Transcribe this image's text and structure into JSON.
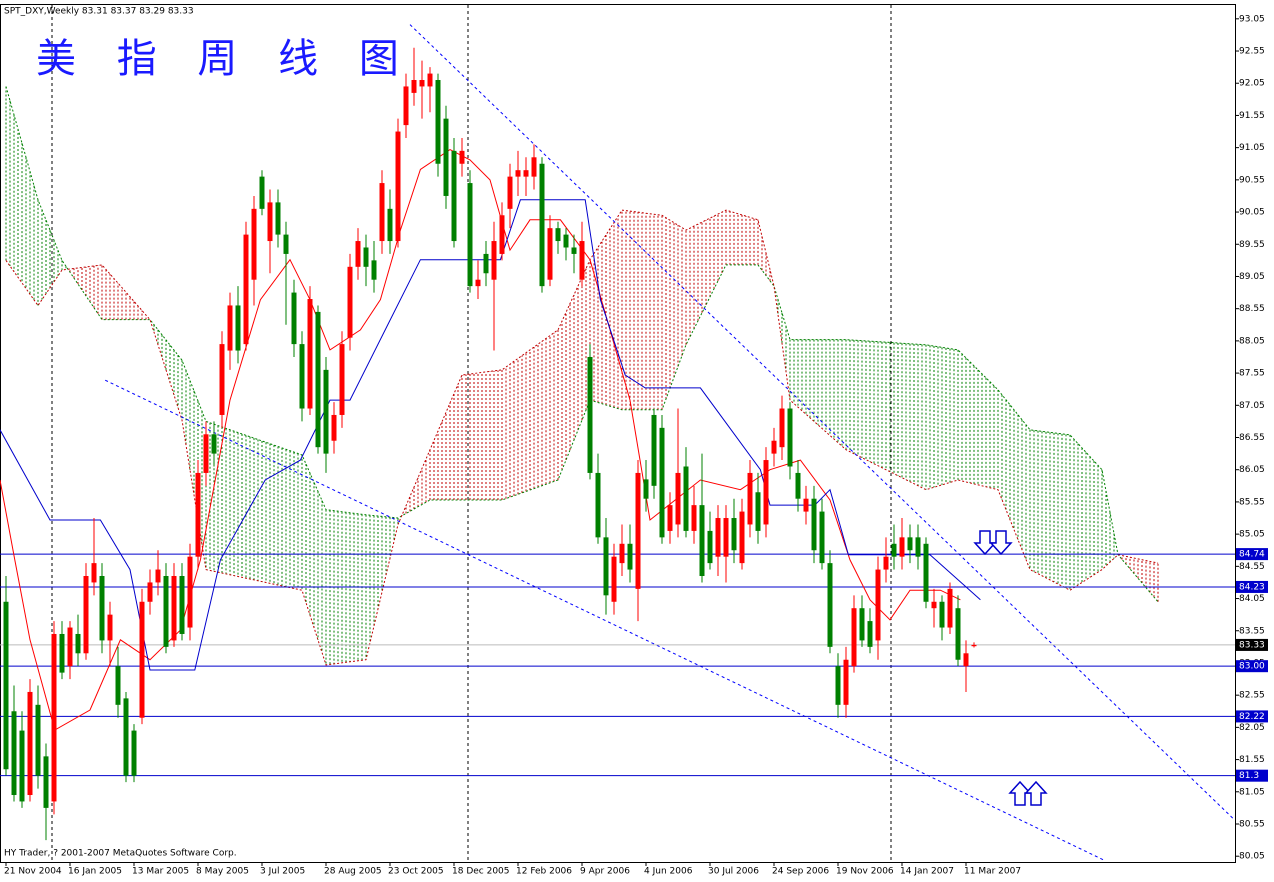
{
  "chart_data": {
    "type": "candlestick",
    "header": "SPT_DXY,Weekly  83.31 83.37 83.29 83.33",
    "title": "美 指 周 线 图",
    "footer": "HY Trader, ? 2001-2007 MetaQuotes Software Corp.",
    "up_color": "#ff0000",
    "down_color": "#008000",
    "xlim": [
      -0.75,
      153.625
    ],
    "ylim": [
      79.96,
      93.28
    ],
    "yticks": [
      80.05,
      80.55,
      81.05,
      81.55,
      82.05,
      82.55,
      83.05,
      83.55,
      84.05,
      84.55,
      85.05,
      85.55,
      86.05,
      86.55,
      87.05,
      87.55,
      88.05,
      88.55,
      89.05,
      89.55,
      90.05,
      90.55,
      91.05,
      91.55,
      92.05,
      92.55,
      93.05
    ],
    "xticks": [
      {
        "value": 0,
        "label": "21 Nov 2004"
      },
      {
        "value": 8,
        "label": "16 Jan 2005"
      },
      {
        "value": 16,
        "label": "13 Mar 2005"
      },
      {
        "value": 24,
        "label": "8 May 2005"
      },
      {
        "value": 32,
        "label": "3 Jul 2005"
      },
      {
        "value": 40,
        "label": "28 Aug 2005"
      },
      {
        "value": 48,
        "label": "23 Oct 2005"
      },
      {
        "value": 56,
        "label": "18 Dec 2005"
      },
      {
        "value": 64,
        "label": "12 Feb 2006"
      },
      {
        "value": 72,
        "label": "9 Apr 2006"
      },
      {
        "value": 80,
        "label": "4 Jun 2006"
      },
      {
        "value": 88,
        "label": "30 Jul 2006"
      },
      {
        "value": 96,
        "label": "24 Sep 2006"
      },
      {
        "value": 104,
        "label": "19 Nov 2006"
      },
      {
        "value": 112,
        "label": "14 Jan 2007"
      },
      {
        "value": 120,
        "label": "11 Mar 2007"
      }
    ],
    "candles": [
      [
        84.0,
        84.4,
        81.3,
        81.4
      ],
      [
        82.3,
        82.7,
        80.9,
        81.0
      ],
      [
        82.0,
        82.3,
        80.8,
        80.9
      ],
      [
        81.0,
        82.8,
        80.9,
        82.6
      ],
      [
        82.4,
        82.7,
        81.1,
        81.3
      ],
      [
        81.6,
        81.8,
        80.3,
        80.8
      ],
      [
        80.9,
        83.7,
        80.7,
        83.5
      ],
      [
        83.5,
        83.7,
        82.8,
        82.9
      ],
      [
        83.0,
        83.7,
        82.8,
        83.6
      ],
      [
        83.5,
        83.8,
        83.0,
        83.2
      ],
      [
        83.2,
        84.6,
        83.1,
        84.4
      ],
      [
        84.3,
        85.3,
        84.1,
        84.6
      ],
      [
        84.4,
        84.6,
        83.2,
        83.4
      ],
      [
        83.4,
        84.0,
        83.0,
        83.8
      ],
      [
        83.0,
        83.3,
        82.2,
        82.4
      ],
      [
        82.5,
        82.6,
        81.2,
        81.3
      ],
      [
        82.0,
        82.1,
        81.2,
        81.3
      ],
      [
        82.2,
        84.2,
        82.1,
        84.0
      ],
      [
        84.0,
        84.5,
        83.8,
        84.3
      ],
      [
        84.3,
        84.8,
        84.1,
        84.5
      ],
      [
        84.4,
        84.6,
        83.2,
        83.3
      ],
      [
        83.4,
        84.6,
        83.3,
        84.4
      ],
      [
        84.4,
        84.6,
        83.4,
        83.5
      ],
      [
        83.6,
        84.9,
        83.4,
        84.7
      ],
      [
        84.7,
        86.2,
        84.5,
        86.0
      ],
      [
        86.0,
        86.8,
        85.8,
        86.6
      ],
      [
        86.6,
        86.8,
        86.1,
        86.3
      ],
      [
        86.9,
        88.2,
        86.7,
        88.0
      ],
      [
        87.9,
        88.8,
        87.6,
        88.6
      ],
      [
        88.6,
        88.9,
        87.7,
        87.9
      ],
      [
        88.0,
        89.9,
        87.9,
        89.7
      ],
      [
        89.0,
        90.3,
        88.6,
        90.1
      ],
      [
        90.6,
        90.7,
        90.0,
        90.1
      ],
      [
        89.6,
        90.4,
        89.1,
        90.2
      ],
      [
        90.2,
        90.4,
        89.5,
        89.7
      ],
      [
        89.7,
        89.9,
        88.3,
        89.4
      ],
      [
        88.8,
        89.0,
        87.8,
        88.0
      ],
      [
        88.0,
        88.2,
        86.8,
        87.0
      ],
      [
        87.0,
        88.9,
        86.9,
        88.7
      ],
      [
        88.5,
        88.6,
        86.3,
        86.4
      ],
      [
        87.6,
        87.8,
        86.0,
        86.3
      ],
      [
        86.5,
        87.1,
        86.3,
        86.9
      ],
      [
        86.9,
        88.2,
        86.7,
        88.0
      ],
      [
        88.1,
        89.4,
        87.9,
        89.2
      ],
      [
        89.2,
        89.8,
        89.0,
        89.6
      ],
      [
        89.5,
        89.7,
        88.9,
        89.2
      ],
      [
        89.3,
        89.6,
        88.8,
        89.0
      ],
      [
        89.6,
        90.7,
        89.4,
        90.5
      ],
      [
        90.1,
        90.4,
        89.4,
        89.6
      ],
      [
        89.6,
        91.5,
        89.5,
        91.3
      ],
      [
        91.4,
        92.2,
        91.2,
        92.0
      ],
      [
        91.9,
        92.6,
        91.7,
        92.1
      ],
      [
        92.0,
        92.4,
        91.5,
        92.1
      ],
      [
        92.0,
        92.3,
        91.6,
        92.2
      ],
      [
        92.1,
        92.2,
        90.6,
        90.8
      ],
      [
        91.5,
        91.7,
        90.1,
        90.3
      ],
      [
        91.0,
        91.2,
        89.5,
        89.6
      ],
      [
        90.8,
        91.2,
        90.6,
        91.0
      ],
      [
        90.5,
        90.7,
        88.8,
        88.9
      ],
      [
        88.9,
        89.3,
        88.7,
        89.0
      ],
      [
        89.4,
        89.6,
        88.9,
        89.1
      ],
      [
        89.0,
        89.9,
        87.9,
        89.6
      ],
      [
        89.4,
        90.2,
        89.3,
        90.0
      ],
      [
        90.1,
        90.8,
        89.8,
        90.6
      ],
      [
        90.6,
        91.0,
        90.3,
        90.7
      ],
      [
        90.6,
        90.9,
        90.3,
        90.7
      ],
      [
        90.6,
        91.1,
        90.4,
        90.9
      ],
      [
        90.8,
        90.9,
        88.8,
        88.9
      ],
      [
        89.0,
        90.0,
        88.9,
        89.8
      ],
      [
        89.8,
        89.9,
        89.4,
        89.6
      ],
      [
        89.7,
        89.8,
        89.3,
        89.5
      ],
      [
        89.5,
        89.7,
        89.1,
        89.4
      ],
      [
        89.0,
        89.9,
        88.9,
        89.6
      ],
      [
        87.8,
        88.0,
        85.9,
        86.0
      ],
      [
        86.0,
        86.3,
        84.9,
        85.0
      ],
      [
        85.0,
        85.3,
        83.8,
        84.1
      ],
      [
        84.0,
        84.9,
        83.8,
        84.7
      ],
      [
        84.6,
        85.2,
        84.4,
        84.9
      ],
      [
        84.9,
        85.2,
        84.3,
        84.5
      ],
      [
        84.2,
        86.2,
        83.7,
        86.0
      ],
      [
        85.9,
        86.2,
        85.4,
        85.6
      ],
      [
        86.9,
        87.0,
        85.6,
        85.8
      ],
      [
        86.7,
        86.9,
        84.9,
        85.0
      ],
      [
        85.1,
        85.7,
        84.9,
        85.5
      ],
      [
        85.2,
        87.0,
        85.0,
        86.0
      ],
      [
        86.1,
        86.4,
        85.0,
        85.1
      ],
      [
        85.1,
        85.8,
        84.9,
        85.5
      ],
      [
        85.5,
        86.3,
        84.3,
        84.4
      ],
      [
        85.1,
        85.4,
        84.5,
        84.6
      ],
      [
        84.7,
        85.5,
        84.4,
        85.3
      ],
      [
        84.7,
        85.5,
        84.3,
        85.3
      ],
      [
        85.3,
        85.6,
        84.6,
        84.8
      ],
      [
        84.6,
        85.6,
        84.5,
        85.4
      ],
      [
        85.2,
        86.2,
        85.0,
        86.0
      ],
      [
        85.7,
        86.0,
        84.9,
        85.1
      ],
      [
        85.2,
        86.4,
        85.0,
        86.2
      ],
      [
        86.3,
        86.7,
        86.1,
        86.5
      ],
      [
        86.4,
        87.2,
        86.2,
        87.0
      ],
      [
        87.0,
        87.1,
        85.9,
        86.1
      ],
      [
        86.0,
        86.2,
        85.4,
        85.6
      ],
      [
        85.4,
        85.8,
        85.2,
        85.6
      ],
      [
        85.6,
        85.8,
        84.6,
        84.8
      ],
      [
        85.4,
        85.6,
        84.5,
        84.6
      ],
      [
        84.6,
        84.8,
        83.2,
        83.3
      ],
      [
        83.0,
        83.2,
        82.2,
        82.4
      ],
      [
        82.4,
        83.3,
        82.2,
        83.1
      ],
      [
        83.0,
        84.1,
        82.9,
        83.9
      ],
      [
        83.9,
        84.1,
        83.3,
        83.4
      ],
      [
        83.7,
        83.9,
        83.2,
        83.3
      ],
      [
        83.4,
        84.7,
        83.1,
        84.5
      ],
      [
        84.5,
        85.0,
        84.3,
        84.7
      ],
      [
        84.9,
        85.2,
        84.5,
        84.7
      ],
      [
        84.7,
        85.3,
        84.5,
        85.0
      ],
      [
        85.0,
        85.2,
        84.6,
        84.8
      ],
      [
        85.0,
        85.2,
        84.5,
        84.7
      ],
      [
        84.9,
        85.0,
        83.9,
        84.0
      ],
      [
        83.9,
        84.2,
        83.6,
        84.0
      ],
      [
        84.0,
        84.1,
        83.4,
        83.6
      ],
      [
        83.6,
        84.3,
        83.5,
        84.2
      ],
      [
        83.9,
        84.1,
        83.0,
        83.1
      ],
      [
        83.0,
        83.4,
        82.6,
        83.2
      ],
      [
        83.31,
        83.37,
        83.29,
        83.33
      ]
    ],
    "lines": [
      {
        "color": "#ff0000",
        "x": [
          -0.75,
          1.1,
          3,
          6.1,
          10.5,
          14.3,
          18,
          21.8,
          24.3,
          28,
          31.8,
          35.5,
          38,
          40.5,
          44.3,
          46.8,
          49.3,
          51.8,
          55.5,
          58,
          60.5,
          63,
          65.5,
          69.3,
          73,
          75.5,
          78,
          80.5,
          86.8,
          91.8,
          95.5,
          99.3,
          103,
          105.5,
          108,
          110.5,
          113,
          116.8,
          119.3
        ],
        "values": [
          85.89,
          84.65,
          83.41,
          82.01,
          82.32,
          83.41,
          83.1,
          83.56,
          84.65,
          87.13,
          88.69,
          89.31,
          88.69,
          87.91,
          88.22,
          88.69,
          89.77,
          90.71,
          91.02,
          90.86,
          90.55,
          89.46,
          89.93,
          89.93,
          89.31,
          88.22,
          87.13,
          85.27,
          85.89,
          85.74,
          86.05,
          86.2,
          85.58,
          84.65,
          84.03,
          83.72,
          84.18,
          84.18,
          84.03
        ]
      },
      {
        "color": "#0000cc",
        "x": [
          -0.75,
          5.5,
          11.8,
          15.5,
          18,
          23.6,
          26.8,
          32.4,
          36.8,
          40.5,
          43,
          47.4,
          51.8,
          61.8,
          64.3,
          72.4,
          74.3,
          77.4,
          79.9,
          86.8,
          94.3,
          95.5,
          101.1,
          103,
          105.3,
          115.5,
          121.8
        ],
        "values": [
          86.67,
          85.27,
          85.27,
          84.5,
          82.94,
          82.94,
          84.65,
          85.89,
          86.2,
          87.13,
          87.13,
          88.22,
          89.31,
          89.31,
          90.24,
          90.24,
          88.69,
          87.52,
          87.32,
          87.32,
          86.05,
          85.5,
          85.5,
          85.74,
          84.73,
          84.73,
          84.03
        ]
      }
    ],
    "cloud": {
      "a_color": "#008000",
      "b_color": "#c00000",
      "x": [
        0,
        4,
        7,
        12,
        18,
        22,
        25,
        37,
        40,
        45,
        49,
        53,
        57,
        62,
        69,
        73,
        77,
        82,
        85,
        90,
        94,
        96,
        98,
        105,
        115,
        119,
        124,
        128,
        133,
        137,
        139,
        144
      ],
      "span_a": [
        92.0,
        90.24,
        89.3,
        88.38,
        88.38,
        87.75,
        86.8,
        86.28,
        85.43,
        85.35,
        85.3,
        85.58,
        85.58,
        85.58,
        85.89,
        87.13,
        86.98,
        86.98,
        87.99,
        89.23,
        89.23,
        88.9,
        88.07,
        88.07,
        87.99,
        87.91,
        87.29,
        86.67,
        86.59,
        86.05,
        84.73,
        84.0
      ],
      "span_b": [
        89.3,
        88.6,
        89.15,
        89.23,
        88.38,
        86.82,
        84.5,
        84.18,
        83.02,
        83.1,
        85.2,
        86.36,
        87.52,
        87.6,
        88.22,
        89.31,
        90.08,
        90.0,
        89.77,
        90.08,
        89.93,
        88.9,
        87.13,
        86.36,
        85.74,
        85.89,
        85.74,
        84.5,
        84.18,
        84.5,
        84.73,
        84.6
      ]
    },
    "trendlines": [
      {
        "color": "#0000ff",
        "x": [
          50.5,
          153.6
        ],
        "values": [
          92.96,
          80.61
        ]
      },
      {
        "color": "#0000ff",
        "x": [
          12.4,
          137.4
        ],
        "values": [
          87.44,
          79.98
        ]
      }
    ],
    "level_color": "#0000cc",
    "levels": [
      84.74,
      84.23,
      {
        "value": 83,
        "label": "83.00"
      },
      82.22,
      81.3
    ],
    "level_labels": [
      "84.74",
      "84.23",
      "83.00",
      "82.22",
      "81.30"
    ],
    "last_price": 83.33
  }
}
